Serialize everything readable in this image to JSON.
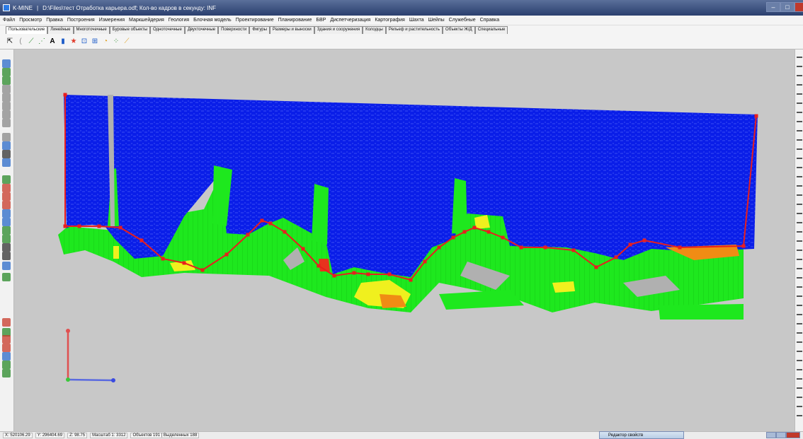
{
  "window": {
    "app_name": "K-MINE",
    "title": "D:\\Files\\тест Отработка карьера.odf; Кол-во кадров в секунду: INF"
  },
  "menu": [
    "Файл",
    "Просмотр",
    "Правка",
    "Построения",
    "Измерения",
    "Маркшейдерия",
    "Геология",
    "Блочная модель",
    "Проектирование",
    "Планирование",
    "БВР",
    "Диспетчеризация",
    "Картография",
    "Шахта",
    "Шейпы",
    "Служебные",
    "Справка"
  ],
  "tabs": [
    "Пользовательские",
    "Линейные",
    "Многоточечные",
    "Буровые объекты",
    "Одноточечные",
    "Двухточечные",
    "Поверхности",
    "Фигуры",
    "Размеры и выноски",
    "Здания и сооружения",
    "Колодцы",
    "Рельеф и растительность",
    "Объекты Ж/Д",
    "Специальные"
  ],
  "active_tab_index": 0,
  "status": {
    "x": "X: 520106.29",
    "y": "Y: 296404.69",
    "z": "Z: 98.75",
    "scale": "Масштаб 1: 3312",
    "objects": "Объектов 191 | Выделенных 188"
  },
  "property_panel": {
    "title": "Редактор свойств"
  },
  "colors": {
    "background": "#c8c8c8",
    "blue_block": "#0a1ee8",
    "green_block": "#1ee81e",
    "yellow_block": "#f0f01e",
    "orange_block": "#f08c14",
    "pit_line": "#e81e1e"
  }
}
